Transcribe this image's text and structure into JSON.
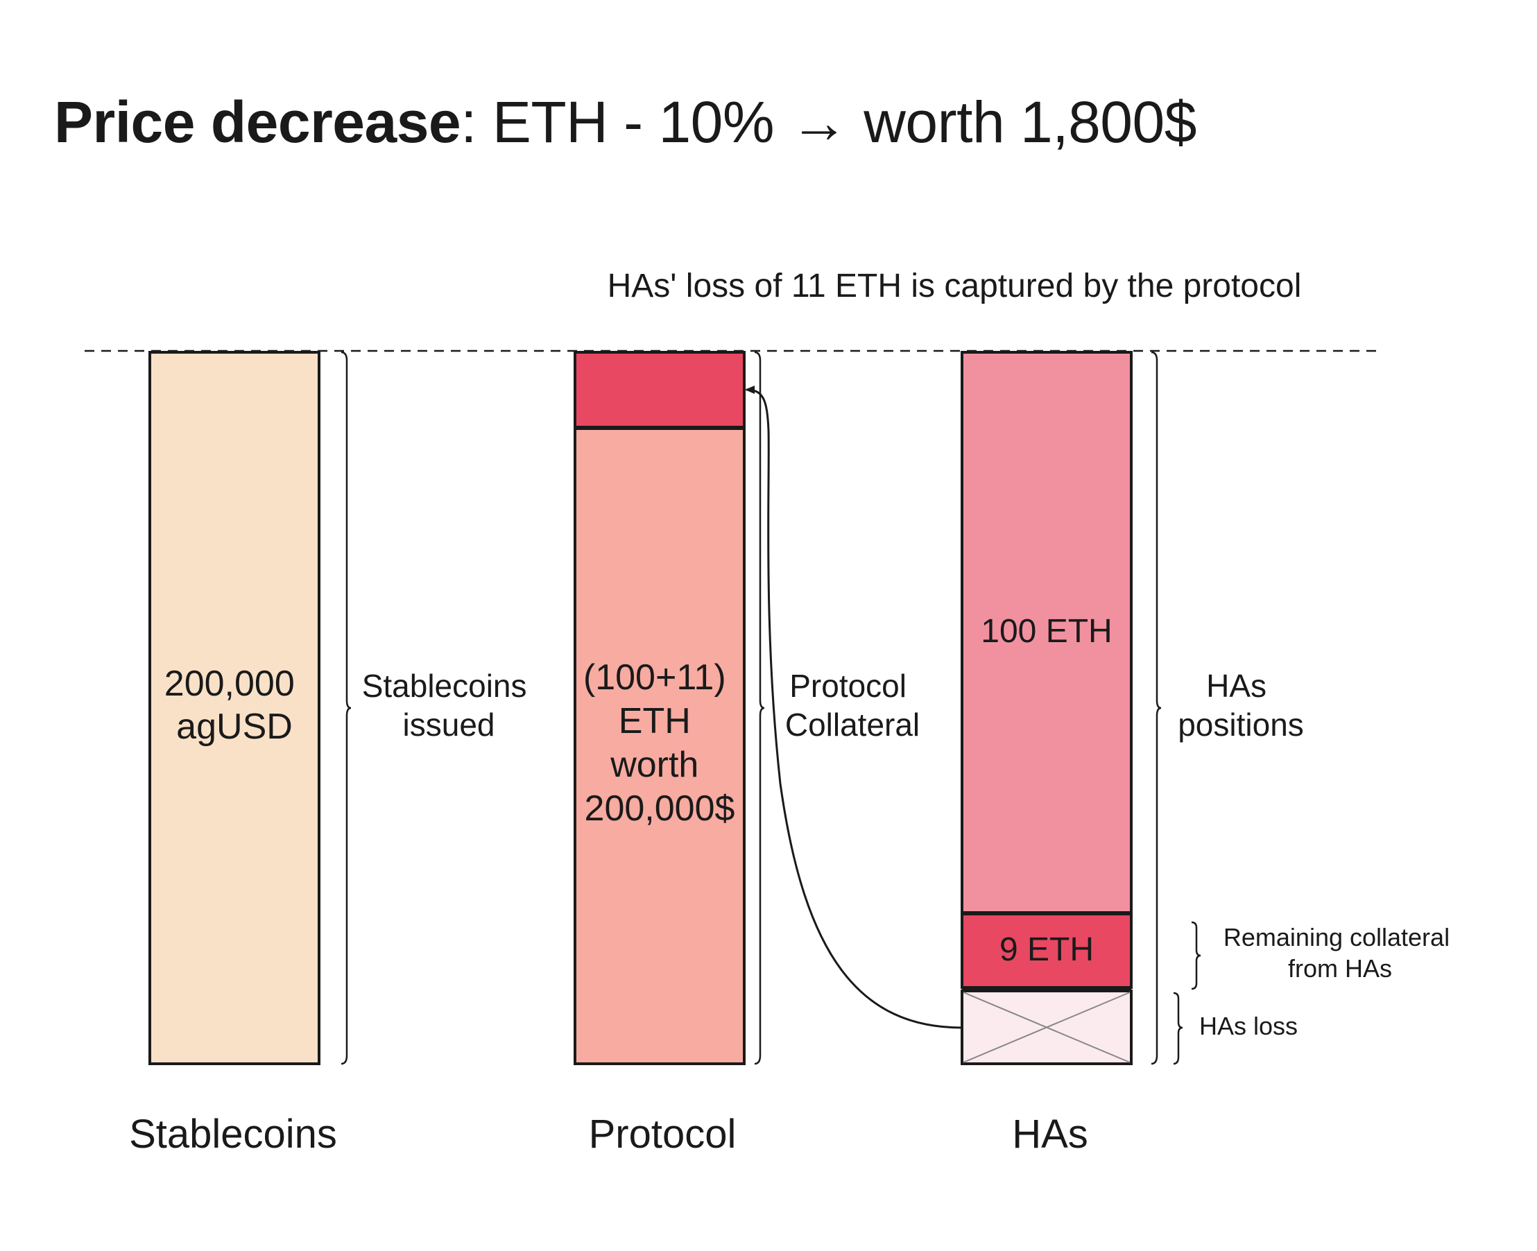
{
  "title": {
    "bold": "Price decrease",
    "rest": ": ETH - 10% → worth 1,800$"
  },
  "caption": "HAs' loss of 11 ETH is captured by the protocol",
  "columns": {
    "stablecoins": {
      "bar_lines": [
        "200,000",
        "agUSD"
      ],
      "brace_lines": [
        "Stablecoins",
        "issued"
      ],
      "footer": "Stablecoins"
    },
    "protocol": {
      "bar_lines": [
        "(100+11)",
        "ETH",
        "worth",
        "200,000$"
      ],
      "brace_lines": [
        "Protocol",
        "Collateral"
      ],
      "footer": "Protocol"
    },
    "has": {
      "positions_label": "100 ETH",
      "remaining_label": "9 ETH",
      "brace_lines": [
        "HAs",
        "positions"
      ],
      "remaining_brace_lines": [
        "Remaining collateral",
        "from HAs"
      ],
      "loss_brace": "HAs loss",
      "footer": "HAs"
    }
  },
  "colors": {
    "stablecoins_fill": "#F9E1C8",
    "protocol_fill": "#F7ABA1",
    "protocol_top_fill": "#E84862",
    "has_positions_fill": "#F191A0",
    "has_remaining_fill": "#E84862",
    "has_loss_fill": "#FCEBEE",
    "stroke": "#1a1a1a"
  }
}
